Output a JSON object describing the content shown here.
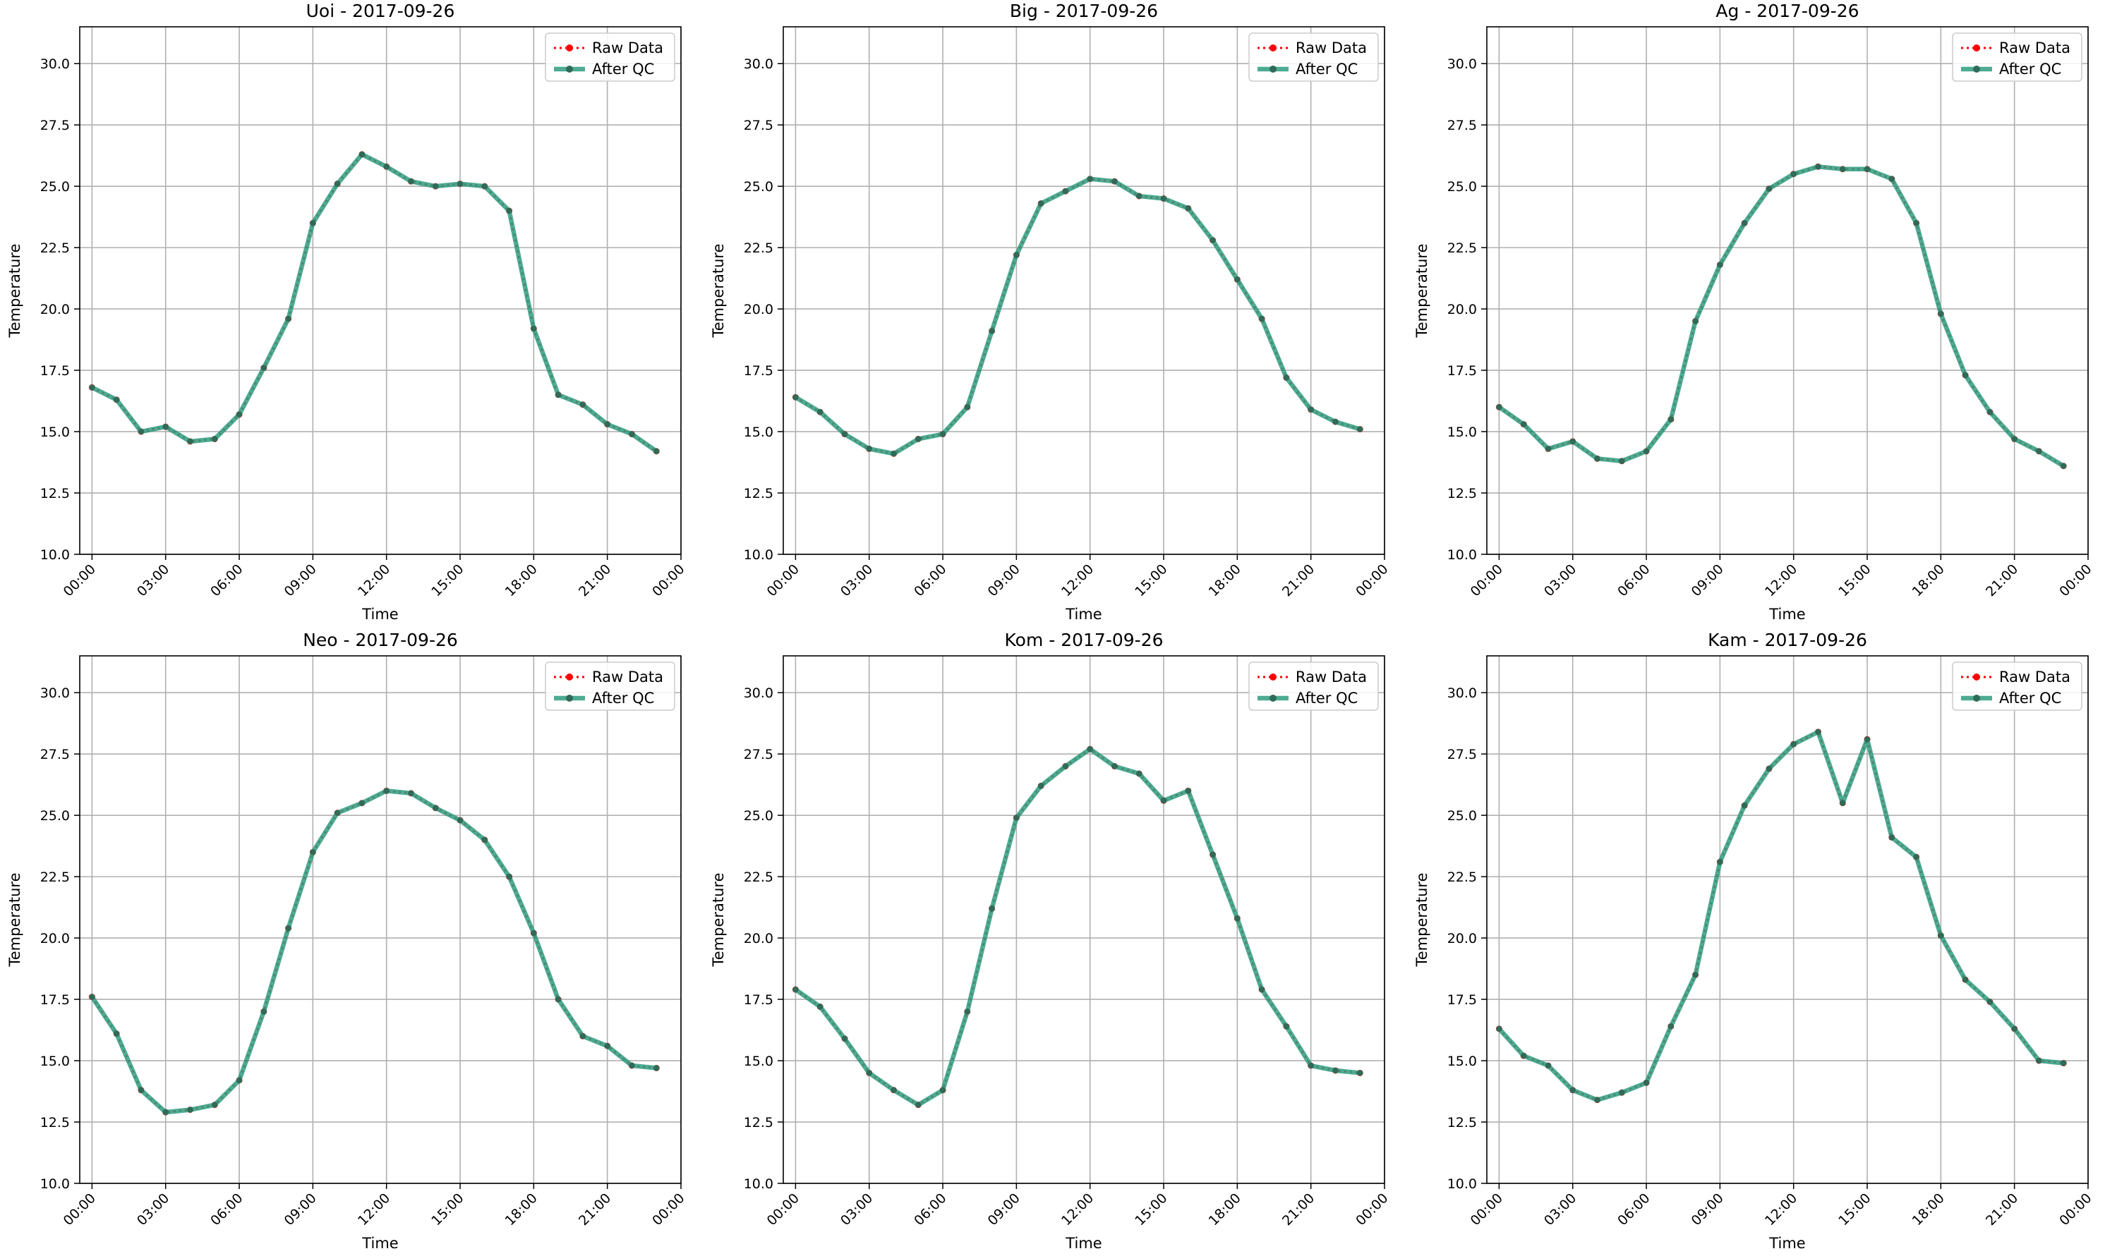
{
  "figure": {
    "colors": {
      "raw": "#ff0000",
      "qc": "#2e9c7f",
      "qc_marker": "#2f6b58",
      "grid": "#b0b0b0",
      "axis": "#000000",
      "legend_border": "#cccccc"
    }
  },
  "chart_data": [
    {
      "type": "line",
      "title": "Uoi - 2017-09-26",
      "xlabel": "Time",
      "ylabel": "Temperature",
      "x": [
        "00:00",
        "01:00",
        "02:00",
        "03:00",
        "04:00",
        "05:00",
        "06:00",
        "07:00",
        "08:00",
        "09:00",
        "10:00",
        "11:00",
        "12:00",
        "13:00",
        "14:00",
        "15:00",
        "16:00",
        "17:00",
        "18:00",
        "19:00",
        "20:00",
        "21:00",
        "22:00",
        "23:00"
      ],
      "xticks": [
        "00:00",
        "03:00",
        "06:00",
        "09:00",
        "12:00",
        "15:00",
        "18:00",
        "21:00",
        "00:00"
      ],
      "xlim_hours": [
        -0.5,
        24.0
      ],
      "ylim": [
        10.0,
        31.5
      ],
      "yticks": [
        "10.0",
        "12.5",
        "15.0",
        "17.5",
        "20.0",
        "22.5",
        "25.0",
        "27.5",
        "30.0"
      ],
      "grid": true,
      "legend_position": "top-right",
      "series": [
        {
          "name": "Raw Data",
          "values": [
            16.8,
            16.3,
            15.0,
            15.2,
            14.6,
            14.7,
            15.7,
            17.6,
            19.6,
            23.5,
            25.1,
            26.3,
            25.8,
            25.2,
            25.0,
            25.1,
            25.0,
            24.0,
            19.2,
            16.5,
            16.1,
            15.3,
            14.9,
            14.2
          ]
        },
        {
          "name": "After QC",
          "values": [
            16.8,
            16.3,
            15.0,
            15.2,
            14.6,
            14.7,
            15.7,
            17.6,
            19.6,
            23.5,
            25.1,
            26.3,
            25.8,
            25.2,
            25.0,
            25.1,
            25.0,
            24.0,
            19.2,
            16.5,
            16.1,
            15.3,
            14.9,
            14.2
          ]
        }
      ]
    },
    {
      "type": "line",
      "title": "Big - 2017-09-26",
      "xlabel": "Time",
      "ylabel": "Temperature",
      "x": [
        "00:00",
        "01:00",
        "02:00",
        "03:00",
        "04:00",
        "05:00",
        "06:00",
        "07:00",
        "08:00",
        "09:00",
        "10:00",
        "11:00",
        "12:00",
        "13:00",
        "14:00",
        "15:00",
        "16:00",
        "17:00",
        "18:00",
        "19:00",
        "20:00",
        "21:00",
        "22:00",
        "23:00"
      ],
      "xticks": [
        "00:00",
        "03:00",
        "06:00",
        "09:00",
        "12:00",
        "15:00",
        "18:00",
        "21:00",
        "00:00"
      ],
      "xlim_hours": [
        -0.5,
        24.0
      ],
      "ylim": [
        10.0,
        31.5
      ],
      "yticks": [
        "10.0",
        "12.5",
        "15.0",
        "17.5",
        "20.0",
        "22.5",
        "25.0",
        "27.5",
        "30.0"
      ],
      "grid": true,
      "legend_position": "top-right",
      "series": [
        {
          "name": "Raw Data",
          "values": [
            16.4,
            15.8,
            14.9,
            14.3,
            14.1,
            14.7,
            14.9,
            16.0,
            19.1,
            22.2,
            24.3,
            24.8,
            25.3,
            25.2,
            24.6,
            24.5,
            24.1,
            22.8,
            21.2,
            19.6,
            17.2,
            15.9,
            15.4,
            15.1
          ]
        },
        {
          "name": "After QC",
          "values": [
            16.4,
            15.8,
            14.9,
            14.3,
            14.1,
            14.7,
            14.9,
            16.0,
            19.1,
            22.2,
            24.3,
            24.8,
            25.3,
            25.2,
            24.6,
            24.5,
            24.1,
            22.8,
            21.2,
            19.6,
            17.2,
            15.9,
            15.4,
            15.1
          ]
        }
      ]
    },
    {
      "type": "line",
      "title": "Ag - 2017-09-26",
      "xlabel": "Time",
      "ylabel": "Temperature",
      "x": [
        "00:00",
        "01:00",
        "02:00",
        "03:00",
        "04:00",
        "05:00",
        "06:00",
        "07:00",
        "08:00",
        "09:00",
        "10:00",
        "11:00",
        "12:00",
        "13:00",
        "14:00",
        "15:00",
        "16:00",
        "17:00",
        "18:00",
        "19:00",
        "20:00",
        "21:00",
        "22:00",
        "23:00"
      ],
      "xticks": [
        "00:00",
        "03:00",
        "06:00",
        "09:00",
        "12:00",
        "15:00",
        "18:00",
        "21:00",
        "00:00"
      ],
      "xlim_hours": [
        -0.5,
        24.0
      ],
      "ylim": [
        10.0,
        31.5
      ],
      "yticks": [
        "10.0",
        "12.5",
        "15.0",
        "17.5",
        "20.0",
        "22.5",
        "25.0",
        "27.5",
        "30.0"
      ],
      "grid": true,
      "legend_position": "top-right",
      "series": [
        {
          "name": "Raw Data",
          "values": [
            16.0,
            15.3,
            14.3,
            14.6,
            13.9,
            13.8,
            14.2,
            15.5,
            19.5,
            21.8,
            23.5,
            24.9,
            25.5,
            25.8,
            25.7,
            25.7,
            25.3,
            23.5,
            19.8,
            17.3,
            15.8,
            14.7,
            14.2,
            13.6
          ]
        },
        {
          "name": "After QC",
          "values": [
            16.0,
            15.3,
            14.3,
            14.6,
            13.9,
            13.8,
            14.2,
            15.5,
            19.5,
            21.8,
            23.5,
            24.9,
            25.5,
            25.8,
            25.7,
            25.7,
            25.3,
            23.5,
            19.8,
            17.3,
            15.8,
            14.7,
            14.2,
            13.6
          ]
        }
      ]
    },
    {
      "type": "line",
      "title": "Neo - 2017-09-26",
      "xlabel": "Time",
      "ylabel": "Temperature",
      "x": [
        "00:00",
        "01:00",
        "02:00",
        "03:00",
        "04:00",
        "05:00",
        "06:00",
        "07:00",
        "08:00",
        "09:00",
        "10:00",
        "11:00",
        "12:00",
        "13:00",
        "14:00",
        "15:00",
        "16:00",
        "17:00",
        "18:00",
        "19:00",
        "20:00",
        "21:00",
        "22:00",
        "23:00"
      ],
      "xticks": [
        "00:00",
        "03:00",
        "06:00",
        "09:00",
        "12:00",
        "15:00",
        "18:00",
        "21:00",
        "00:00"
      ],
      "xlim_hours": [
        -0.5,
        24.0
      ],
      "ylim": [
        10.0,
        31.5
      ],
      "yticks": [
        "10.0",
        "12.5",
        "15.0",
        "17.5",
        "20.0",
        "22.5",
        "25.0",
        "27.5",
        "30.0"
      ],
      "grid": true,
      "legend_position": "top-right",
      "series": [
        {
          "name": "Raw Data",
          "values": [
            17.6,
            16.1,
            13.8,
            12.9,
            13.0,
            13.2,
            14.2,
            17.0,
            20.4,
            23.5,
            25.1,
            25.5,
            26.0,
            25.9,
            25.3,
            24.8,
            24.0,
            22.5,
            20.2,
            17.5,
            16.0,
            15.6,
            14.8,
            14.7
          ]
        },
        {
          "name": "After QC",
          "values": [
            17.6,
            16.1,
            13.8,
            12.9,
            13.0,
            13.2,
            14.2,
            17.0,
            20.4,
            23.5,
            25.1,
            25.5,
            26.0,
            25.9,
            25.3,
            24.8,
            24.0,
            22.5,
            20.2,
            17.5,
            16.0,
            15.6,
            14.8,
            14.7
          ]
        }
      ]
    },
    {
      "type": "line",
      "title": "Kom - 2017-09-26",
      "xlabel": "Time",
      "ylabel": "Temperature",
      "x": [
        "00:00",
        "01:00",
        "02:00",
        "03:00",
        "04:00",
        "05:00",
        "06:00",
        "07:00",
        "08:00",
        "09:00",
        "10:00",
        "11:00",
        "12:00",
        "13:00",
        "14:00",
        "15:00",
        "16:00",
        "17:00",
        "18:00",
        "19:00",
        "20:00",
        "21:00",
        "22:00",
        "23:00"
      ],
      "xticks": [
        "00:00",
        "03:00",
        "06:00",
        "09:00",
        "12:00",
        "15:00",
        "18:00",
        "21:00",
        "00:00"
      ],
      "xlim_hours": [
        -0.5,
        24.0
      ],
      "ylim": [
        10.0,
        31.5
      ],
      "yticks": [
        "10.0",
        "12.5",
        "15.0",
        "17.5",
        "20.0",
        "22.5",
        "25.0",
        "27.5",
        "30.0"
      ],
      "grid": true,
      "legend_position": "top-right",
      "series": [
        {
          "name": "Raw Data",
          "values": [
            17.9,
            17.2,
            15.9,
            14.5,
            13.8,
            13.2,
            13.8,
            17.0,
            21.2,
            24.9,
            26.2,
            27.0,
            27.7,
            27.0,
            26.7,
            25.6,
            26.0,
            23.4,
            20.8,
            17.9,
            16.4,
            14.8,
            14.6,
            14.5
          ]
        },
        {
          "name": "After QC",
          "values": [
            17.9,
            17.2,
            15.9,
            14.5,
            13.8,
            13.2,
            13.8,
            17.0,
            21.2,
            24.9,
            26.2,
            27.0,
            27.7,
            27.0,
            26.7,
            25.6,
            26.0,
            23.4,
            20.8,
            17.9,
            16.4,
            14.8,
            14.6,
            14.5
          ]
        }
      ]
    },
    {
      "type": "line",
      "title": "Kam - 2017-09-26",
      "xlabel": "Time",
      "ylabel": "Temperature",
      "x": [
        "00:00",
        "01:00",
        "02:00",
        "03:00",
        "04:00",
        "05:00",
        "06:00",
        "07:00",
        "08:00",
        "09:00",
        "10:00",
        "11:00",
        "12:00",
        "13:00",
        "14:00",
        "15:00",
        "16:00",
        "17:00",
        "18:00",
        "19:00",
        "20:00",
        "21:00",
        "22:00",
        "23:00"
      ],
      "xticks": [
        "00:00",
        "03:00",
        "06:00",
        "09:00",
        "12:00",
        "15:00",
        "18:00",
        "21:00",
        "00:00"
      ],
      "xlim_hours": [
        -0.5,
        24.0
      ],
      "ylim": [
        10.0,
        31.5
      ],
      "yticks": [
        "10.0",
        "12.5",
        "15.0",
        "17.5",
        "20.0",
        "22.5",
        "25.0",
        "27.5",
        "30.0"
      ],
      "grid": true,
      "legend_position": "top-right",
      "series": [
        {
          "name": "Raw Data",
          "values": [
            16.3,
            15.2,
            14.8,
            13.8,
            13.4,
            13.7,
            14.1,
            16.4,
            18.5,
            23.1,
            25.4,
            26.9,
            27.9,
            28.4,
            25.5,
            28.1,
            24.1,
            23.3,
            20.1,
            18.3,
            17.4,
            16.3,
            15.0,
            14.9
          ]
        },
        {
          "name": "After QC",
          "values": [
            16.3,
            15.2,
            14.8,
            13.8,
            13.4,
            13.7,
            14.1,
            16.4,
            18.5,
            23.1,
            25.4,
            26.9,
            27.9,
            28.4,
            25.5,
            28.1,
            24.1,
            23.3,
            20.1,
            18.3,
            17.4,
            16.3,
            15.0,
            14.9
          ]
        }
      ]
    }
  ]
}
